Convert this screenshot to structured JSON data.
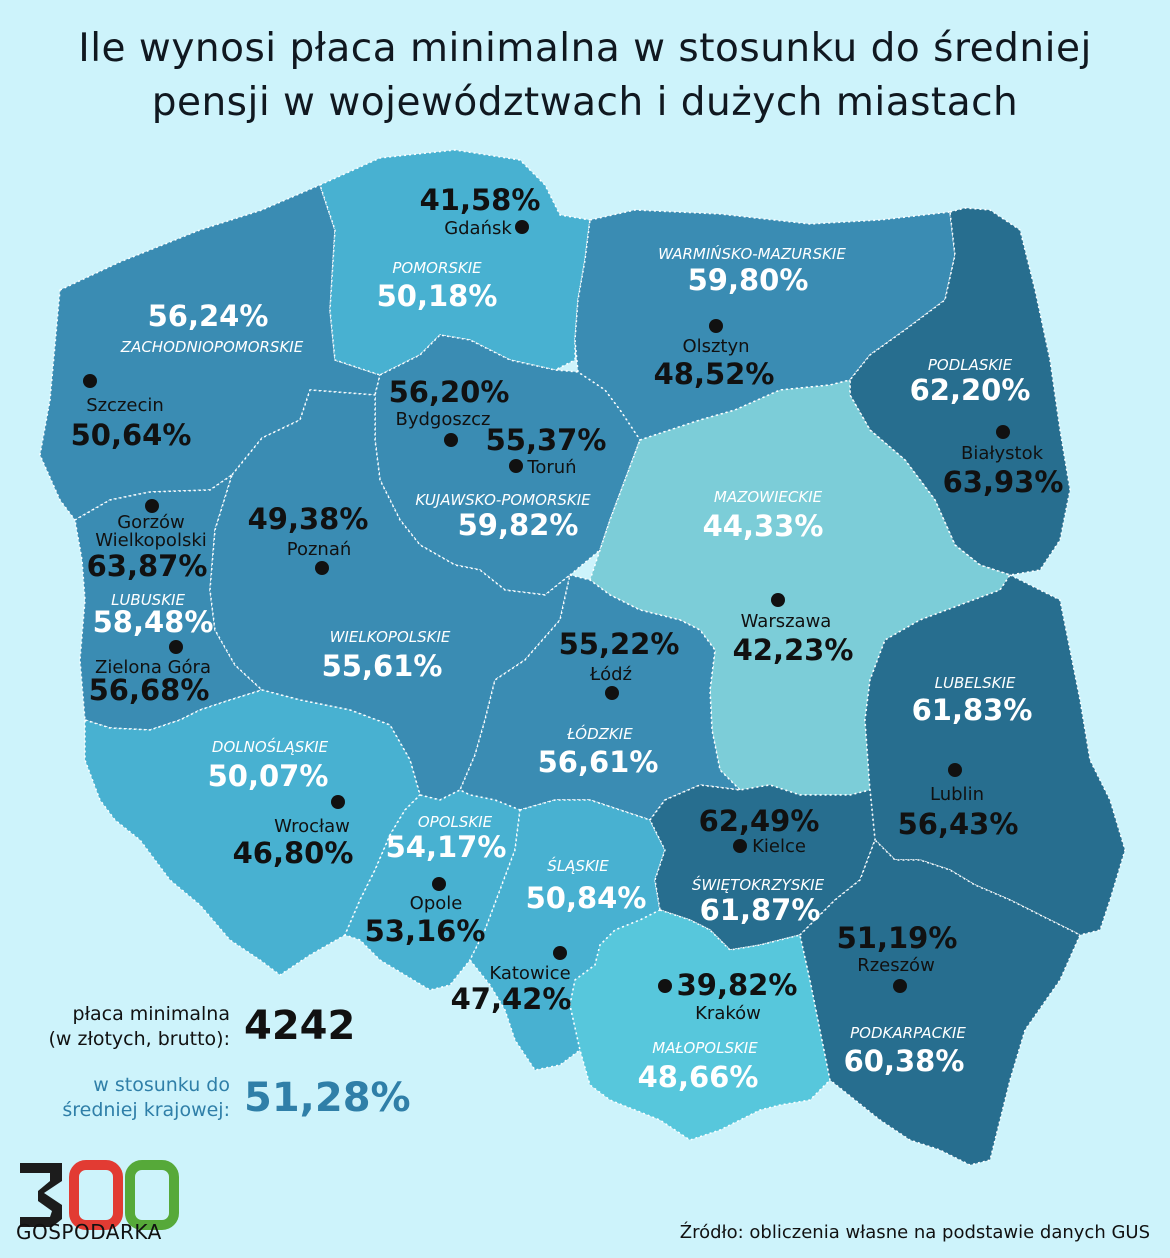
{
  "title": {
    "line1": "Ile wynosi płaca minimalna w stosunku do średniej",
    "line2": "pensji w województwach i dużych miastach"
  },
  "colors": {
    "background": "#cdf3fb",
    "darkest": "#276e8f",
    "dark": "#3a8cb3",
    "medium": "#48b1d1",
    "light": "#57c7dc",
    "lightest": "#7ccdd8"
  },
  "regions": [
    {
      "key": "zachodniopomorskie",
      "name": "ZACHODNIOPOMORSKIE",
      "value": "56,24%"
    },
    {
      "key": "pomorskie",
      "name": "POMORSKIE",
      "value": "50,18%"
    },
    {
      "key": "warminsko_mazurskie",
      "name": "WARMIŃSKO-MAZURSKIE",
      "value": "59,80%"
    },
    {
      "key": "podlaskie",
      "name": "PODLASKIE",
      "value": "62,20%"
    },
    {
      "key": "kujawsko_pomorskie",
      "name": "KUJAWSKO-POMORSKIE",
      "value": "59,82%"
    },
    {
      "key": "mazowieckie",
      "name": "MAZOWIECKIE",
      "value": "44,33%"
    },
    {
      "key": "lubuskie",
      "name": "LUBUSKIE",
      "value": "58,48%"
    },
    {
      "key": "wielkopolskie",
      "name": "WIELKOPOLSKIE",
      "value": "55,61%"
    },
    {
      "key": "lodzkie",
      "name": "ŁÓDZKIE",
      "value": "56,61%"
    },
    {
      "key": "lubelskie",
      "name": "LUBELSKIE",
      "value": "61,83%"
    },
    {
      "key": "dolnoslaskie",
      "name": "DOLNOŚLĄSKIE",
      "value": "50,07%"
    },
    {
      "key": "opolskie",
      "name": "OPOLSKIE",
      "value": "54,17%"
    },
    {
      "key": "slaskie",
      "name": "ŚLĄSKIE",
      "value": "50,84%"
    },
    {
      "key": "swietokrzyskie",
      "name": "ŚWIĘTOKRZYSKIE",
      "value": "61,87%"
    },
    {
      "key": "malopolskie",
      "name": "MAŁOPOLSKIE",
      "value": "48,66%"
    },
    {
      "key": "podkarpackie",
      "name": "PODKARPACKIE",
      "value": "60,38%"
    }
  ],
  "cities": [
    {
      "name": "Gdańsk",
      "value": "41,58%"
    },
    {
      "name": "Olsztyn",
      "value": "48,52%"
    },
    {
      "name": "Białystok",
      "value": "63,93%"
    },
    {
      "name": "Szczecin",
      "value": "50,64%"
    },
    {
      "name": "Bydgoszcz",
      "value": "56,20%"
    },
    {
      "name": "Toruń",
      "value": "55,37%"
    },
    {
      "name": "Gorzów",
      "name2": "Wielkopolski",
      "value": "63,87%"
    },
    {
      "name": "Poznań",
      "value": "49,38%"
    },
    {
      "name": "Zielona Góra",
      "value": "56,68%"
    },
    {
      "name": "Warszawa",
      "value": "42,23%"
    },
    {
      "name": "Łódź",
      "value": "55,22%"
    },
    {
      "name": "Lublin",
      "value": "56,43%"
    },
    {
      "name": "Wrocław",
      "value": "46,80%"
    },
    {
      "name": "Opole",
      "value": "53,16%"
    },
    {
      "name": "Kielce",
      "value": "62,49%"
    },
    {
      "name": "Katowice",
      "value": "47,42%"
    },
    {
      "name": "Kraków",
      "value": "39,82%"
    },
    {
      "name": "Rzeszów",
      "value": "51,19%"
    }
  ],
  "legend": {
    "min_wage_label_line1": "płaca minimalna",
    "min_wage_label_line2": "(w złotych, brutto):",
    "min_wage_value": "4242",
    "ratio_label_line1": "w stosunku do",
    "ratio_label_line2": "średniej krajowej:",
    "ratio_value": "51,28%"
  },
  "logo": {
    "digits": "300",
    "text": "GOSPODARKA"
  },
  "source": "Źródło: obliczenia własne na podstawie danych GUS"
}
